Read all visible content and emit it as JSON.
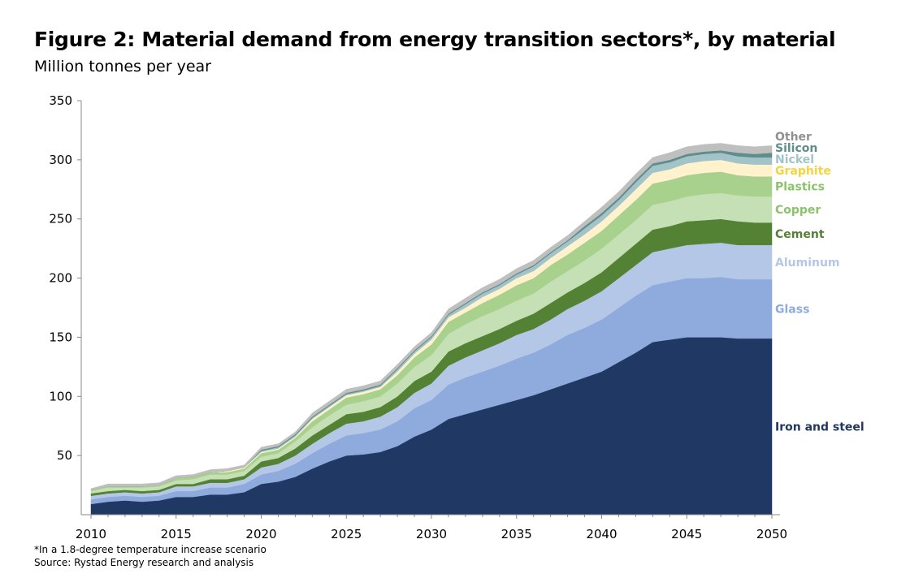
{
  "title": "Figure 2: Material demand from energy transition sectors*, by material",
  "subtitle": "Million tonnes per year",
  "footnote": "*In a 1.8-degree temperature increase scenario",
  "source": "Source: Rystad Energy research and analysis",
  "chart_data": {
    "type": "area",
    "stacked": true,
    "x": [
      2010,
      2011,
      2012,
      2013,
      2014,
      2015,
      2016,
      2017,
      2018,
      2019,
      2020,
      2021,
      2022,
      2023,
      2024,
      2025,
      2026,
      2027,
      2028,
      2029,
      2030,
      2031,
      2032,
      2033,
      2034,
      2035,
      2036,
      2037,
      2038,
      2039,
      2040,
      2041,
      2042,
      2043,
      2044,
      2045,
      2046,
      2047,
      2048,
      2049,
      2050
    ],
    "ylim": [
      0,
      350
    ],
    "yticks": [
      50,
      100,
      150,
      200,
      250,
      300,
      350
    ],
    "xticks": [
      2010,
      2015,
      2020,
      2025,
      2030,
      2035,
      2040,
      2045,
      2050
    ],
    "grid": false,
    "legend": "direct labels at right end of areas",
    "series": [
      {
        "name": "Iron and steel",
        "color": "#203864",
        "values": [
          9,
          11,
          12,
          11,
          12,
          15,
          15,
          17,
          17,
          19,
          26,
          28,
          32,
          39,
          45,
          50,
          51,
          53,
          58,
          66,
          72,
          81,
          85,
          89,
          93,
          97,
          101,
          106,
          111,
          116,
          121,
          129,
          137,
          146,
          148,
          150,
          150,
          150,
          149,
          149,
          149
        ]
      },
      {
        "name": "Glass",
        "color": "#8faadc",
        "values": [
          4,
          4,
          4,
          4,
          4,
          5,
          5,
          6,
          6,
          7,
          8,
          9,
          11,
          13,
          15,
          17,
          18,
          19,
          21,
          24,
          25,
          29,
          31,
          32,
          33,
          35,
          36,
          38,
          41,
          42,
          44,
          46,
          48,
          48,
          49,
          50,
          50,
          51,
          50,
          50,
          50
        ]
      },
      {
        "name": "Aluminum",
        "color": "#b4c7e7",
        "values": [
          3,
          3,
          3,
          3,
          3,
          4,
          4,
          4,
          4,
          4,
          6,
          6,
          7,
          8,
          9,
          10,
          10,
          11,
          12,
          13,
          14,
          16,
          17,
          18,
          19,
          20,
          20,
          21,
          22,
          23,
          24,
          25,
          26,
          28,
          28,
          28,
          29,
          29,
          29,
          29,
          29
        ]
      },
      {
        "name": "Cement",
        "color": "#548235",
        "values": [
          2,
          2,
          2,
          2,
          2,
          2,
          2,
          3,
          3,
          3,
          5,
          5,
          6,
          7,
          7,
          8,
          8,
          8,
          9,
          10,
          10,
          12,
          12,
          12,
          12,
          12,
          13,
          14,
          14,
          15,
          16,
          17,
          18,
          19,
          19,
          20,
          20,
          20,
          20,
          19,
          19
        ]
      },
      {
        "name": "Copper",
        "color": "#c5e0b4",
        "values": [
          2,
          3,
          2,
          3,
          3,
          3,
          4,
          4,
          4,
          4,
          4,
          4,
          6,
          7,
          8,
          8,
          9,
          9,
          11,
          12,
          14,
          15,
          16,
          17,
          17,
          17,
          17,
          18,
          18,
          19,
          20,
          20,
          20,
          21,
          21,
          21,
          22,
          22,
          22,
          22,
          22
        ]
      },
      {
        "name": "Plastics",
        "color": "#a9d18e",
        "values": [
          1,
          1,
          1,
          1,
          1,
          2,
          2,
          2,
          2,
          2,
          3,
          3,
          3,
          5,
          5,
          6,
          6,
          6,
          7,
          8,
          9,
          10,
          10,
          11,
          12,
          13,
          13,
          14,
          14,
          15,
          15,
          16,
          17,
          18,
          18,
          18,
          18,
          18,
          17,
          17,
          17
        ]
      },
      {
        "name": "Graphite",
        "color": "#fff2cc",
        "values": [
          0,
          0,
          0,
          0,
          0,
          0,
          0,
          0,
          1,
          1,
          1,
          1,
          1,
          2,
          2,
          2,
          2,
          2,
          3,
          3,
          4,
          4,
          4,
          5,
          5,
          6,
          6,
          6,
          7,
          7,
          8,
          8,
          9,
          9,
          9,
          10,
          10,
          10,
          10,
          10,
          10
        ]
      },
      {
        "name": "Nickel",
        "color": "#a2c4c9",
        "values": [
          0,
          0,
          0,
          0,
          0,
          0,
          0,
          0,
          0,
          0,
          1,
          1,
          1,
          1,
          1,
          1,
          1,
          1,
          2,
          2,
          2,
          2,
          3,
          3,
          3,
          3,
          4,
          4,
          4,
          5,
          5,
          5,
          6,
          6,
          6,
          6,
          6,
          6,
          6,
          6,
          6
        ]
      },
      {
        "name": "Silicon",
        "color": "#5f8d8b",
        "values": [
          0,
          0,
          0,
          0,
          0,
          0,
          0,
          0,
          0,
          0,
          1,
          1,
          1,
          1,
          1,
          1,
          1,
          1,
          1,
          1,
          1,
          1,
          1,
          1,
          1,
          1,
          1,
          1,
          1,
          2,
          2,
          2,
          2,
          2,
          2,
          2,
          2,
          2,
          3,
          3,
          4
        ]
      },
      {
        "name": "Other",
        "color": "#bfbfbf",
        "values": [
          1,
          2,
          2,
          2,
          2,
          2,
          2,
          2,
          2,
          2,
          2,
          2,
          2,
          3,
          3,
          3,
          3,
          3,
          3,
          3,
          3,
          4,
          4,
          4,
          4,
          4,
          4,
          4,
          4,
          4,
          5,
          5,
          5,
          5,
          6,
          6,
          6,
          6,
          6,
          6,
          6
        ]
      }
    ]
  }
}
